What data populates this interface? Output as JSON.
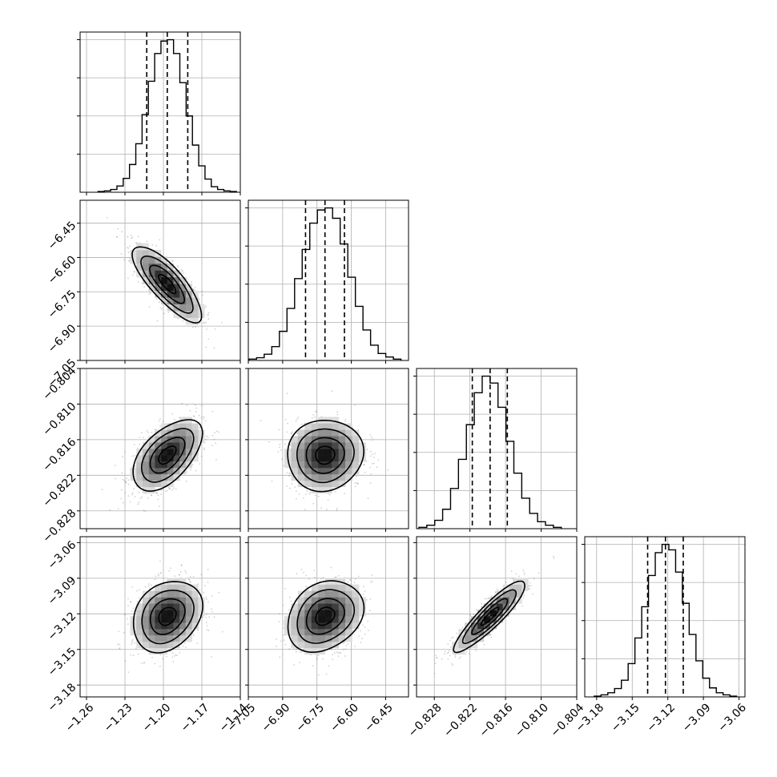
{
  "chart_data": {
    "type": "corner",
    "grid": true,
    "contour_levels": 4,
    "variables": [
      {
        "range": [
          -1.265,
          -1.14
        ],
        "ticks": [
          -1.26,
          -1.23,
          -1.2,
          -1.17,
          -1.14
        ],
        "tick_labels": [
          "−1.26",
          "−1.23",
          "−1.20",
          "−1.17",
          "−1.14"
        ],
        "quantiles": [
          -1.213,
          -1.197,
          -1.181
        ],
        "mean": -1.197,
        "std": 0.0135,
        "hist_counts": [
          1,
          2,
          4,
          9,
          20,
          40,
          70,
          112,
          160,
          200,
          218,
          220,
          200,
          158,
          110,
          68,
          38,
          19,
          8,
          4,
          2,
          1
        ]
      },
      {
        "range": [
          -7.05,
          -6.35
        ],
        "ticks": [
          -7.05,
          -6.9,
          -6.75,
          -6.6,
          -6.45
        ],
        "tick_labels": [
          "−7.05",
          "−6.90",
          "−6.75",
          "−6.60",
          "−6.45"
        ],
        "quantiles": [
          -6.8,
          -6.715,
          -6.63
        ],
        "mean": -6.715,
        "std": 0.083,
        "hist_counts": [
          2,
          4,
          9,
          20,
          42,
          75,
          118,
          160,
          198,
          217,
          220,
          205,
          168,
          120,
          78,
          44,
          22,
          10,
          5,
          2
        ]
      },
      {
        "range": [
          -0.831,
          -0.804
        ],
        "ticks": [
          -0.828,
          -0.822,
          -0.816,
          -0.81,
          -0.804
        ],
        "tick_labels": [
          "−0.828",
          "−0.822",
          "−0.816",
          "−0.810",
          "−0.804"
        ],
        "quantiles": [
          -0.8216,
          -0.8186,
          -0.8157
        ],
        "mean": -0.8186,
        "std": 0.003,
        "hist_counts": [
          2,
          5,
          12,
          28,
          58,
          100,
          150,
          196,
          220,
          210,
          175,
          126,
          80,
          44,
          22,
          10,
          5,
          2
        ]
      },
      {
        "range": [
          -3.19,
          -3.055
        ],
        "ticks": [
          -3.18,
          -3.15,
          -3.12,
          -3.09,
          -3.06
        ],
        "tick_labels": [
          "−3.18",
          "−3.15",
          "−3.12",
          "−3.09",
          "−3.06"
        ],
        "quantiles": [
          -3.137,
          -3.122,
          -3.107
        ],
        "mean": -3.122,
        "std": 0.015,
        "hist_counts": [
          1,
          3,
          6,
          12,
          24,
          48,
          85,
          130,
          175,
          208,
          220,
          212,
          180,
          135,
          90,
          52,
          27,
          13,
          6,
          3,
          1
        ]
      }
    ],
    "correlations": [
      [
        1,
        -0.8,
        0.55,
        0.25
      ],
      [
        -0.8,
        1,
        0.05,
        0.25
      ],
      [
        0.55,
        0.05,
        1,
        0.9
      ],
      [
        0.25,
        0.25,
        0.9,
        1
      ]
    ]
  }
}
